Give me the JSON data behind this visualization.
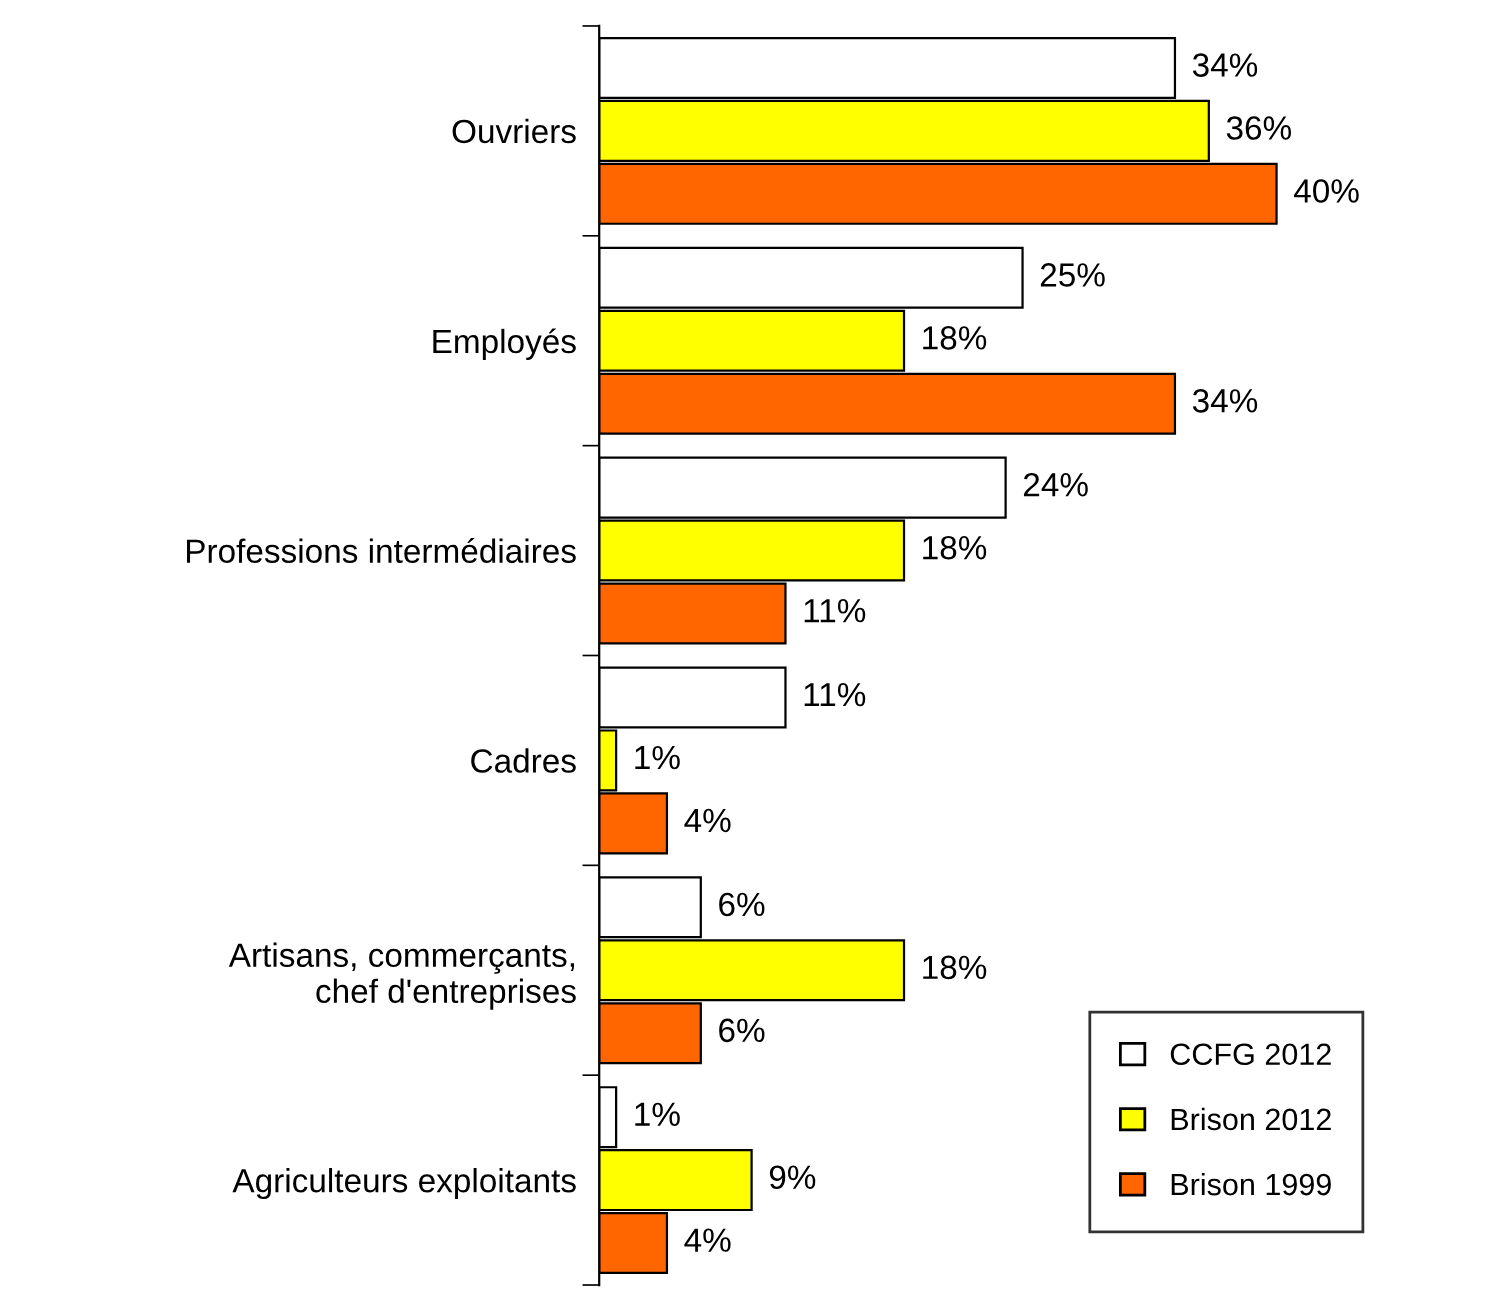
{
  "chart_data": {
    "type": "bar",
    "orientation": "horizontal",
    "legend": "bottom right",
    "grid": false,
    "categories": [
      "Ouvriers",
      "Employés",
      "Professions intermédiaires",
      "Cadres",
      "Artisans, commerçants,\nchef d'entreprises",
      "Agriculteurs exploitants"
    ],
    "series": [
      {
        "name": "CCFG 2012",
        "color": "#ffffff",
        "values": [
          34,
          25,
          24,
          11,
          6,
          1
        ],
        "value_labels": [
          "34%",
          "25%",
          "24%",
          "11%",
          "6%",
          "1%"
        ]
      },
      {
        "name": "Brison 2012",
        "color": "#ffff00",
        "values": [
          36,
          18,
          18,
          1,
          18,
          9
        ],
        "value_labels": [
          "36%",
          "18%",
          "18%",
          "1%",
          "18%",
          "9%"
        ]
      },
      {
        "name": "Brison 1999",
        "color": "#ff6600",
        "values": [
          40,
          34,
          11,
          4,
          6,
          4
        ],
        "value_labels": [
          "40%",
          "34%",
          "11%",
          "4%",
          "6%",
          "4%"
        ]
      }
    ]
  }
}
